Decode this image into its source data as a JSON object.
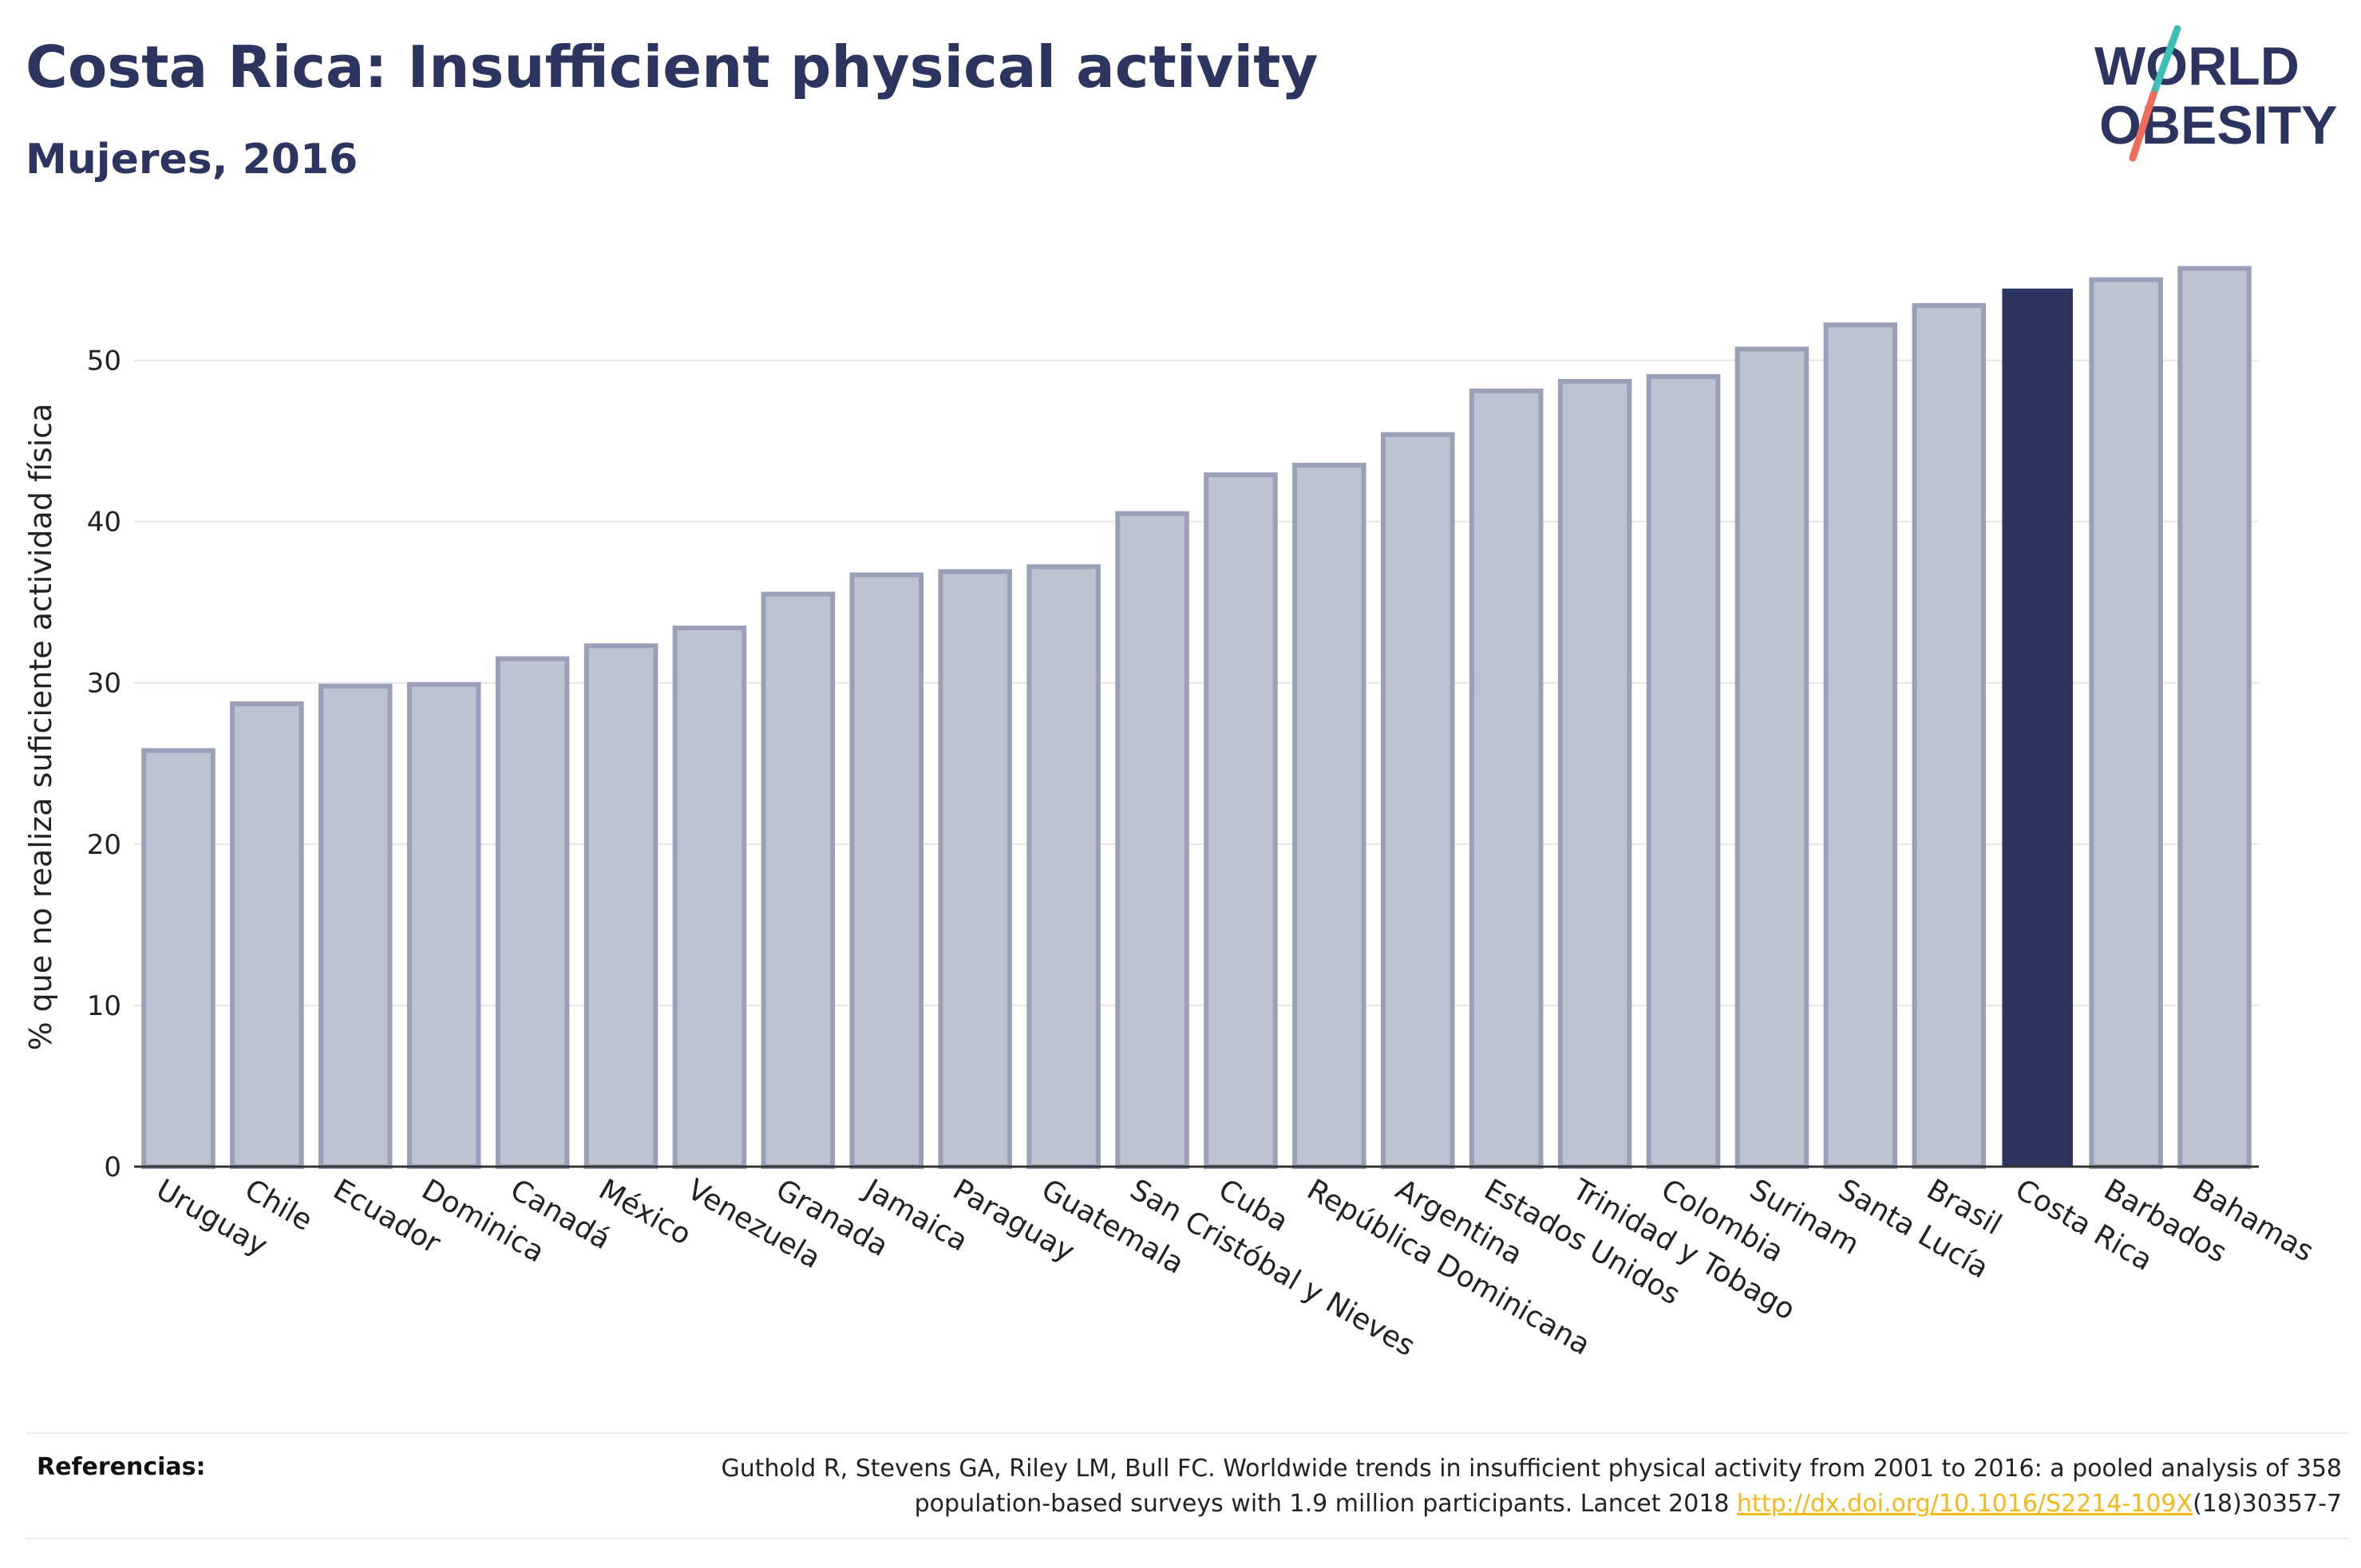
{
  "header": {
    "title": "Costa Rica: Insufficient physical activity",
    "subtitle": "Mujeres, 2016"
  },
  "logo": {
    "line1": "WORLD",
    "line2": "OBESITY",
    "slash_top_color": "#3ebfb6",
    "slash_bottom_color": "#ef6b5a"
  },
  "colors": {
    "bar": "#bfc2cf",
    "bar_border": "#9aa0b8",
    "highlight": "#2b355f",
    "grid": "#e6e6e6",
    "axis": "#333333",
    "text": "#222222",
    "link": "#f5b71a"
  },
  "chart_data": {
    "type": "bar",
    "title": "Costa Rica: Insufficient physical activity",
    "subtitle": "Mujeres, 2016",
    "xlabel": "",
    "ylabel": "% que no realiza suficiente actividad física",
    "ylim": [
      0,
      57.5
    ],
    "yticks": [
      0,
      10,
      20,
      30,
      40,
      50
    ],
    "grid": true,
    "highlight": "Costa Rica",
    "categories": [
      "Uruguay",
      "Chile",
      "Ecuador",
      "Dominica",
      "Canadá",
      "México",
      "Venezuela",
      "Granada",
      "Jamaica",
      "Paraguay",
      "Guatemala",
      "San Cristóbal y Nieves",
      "Cuba",
      "República Dominicana",
      "Argentina",
      "Estados Unidos",
      "Trinidad y Tobago",
      "Colombia",
      "Surinam",
      "Santa Lucía",
      "Brasil",
      "Costa Rica",
      "Barbados",
      "Bahamas"
    ],
    "values": [
      25.8,
      28.7,
      29.8,
      29.9,
      31.5,
      32.3,
      33.4,
      35.5,
      36.7,
      36.9,
      37.2,
      40.5,
      42.9,
      43.5,
      45.4,
      48.1,
      48.7,
      49.0,
      50.7,
      52.2,
      53.4,
      54.4,
      55.0,
      55.7
    ]
  },
  "footer": {
    "ref_label": "Referencias:",
    "ref_text_1": "Guthold R, Stevens GA, Riley LM, Bull FC. Worldwide trends in insufficient physical activity from 2001 to 2016: a pooled analysis of 358",
    "ref_text_2": "population-based surveys with 1.9 million participants. Lancet 2018 ",
    "ref_link": "http://dx.doi.org/10.1016/S2214-109X",
    "ref_text_3": "(18)30357-7"
  }
}
